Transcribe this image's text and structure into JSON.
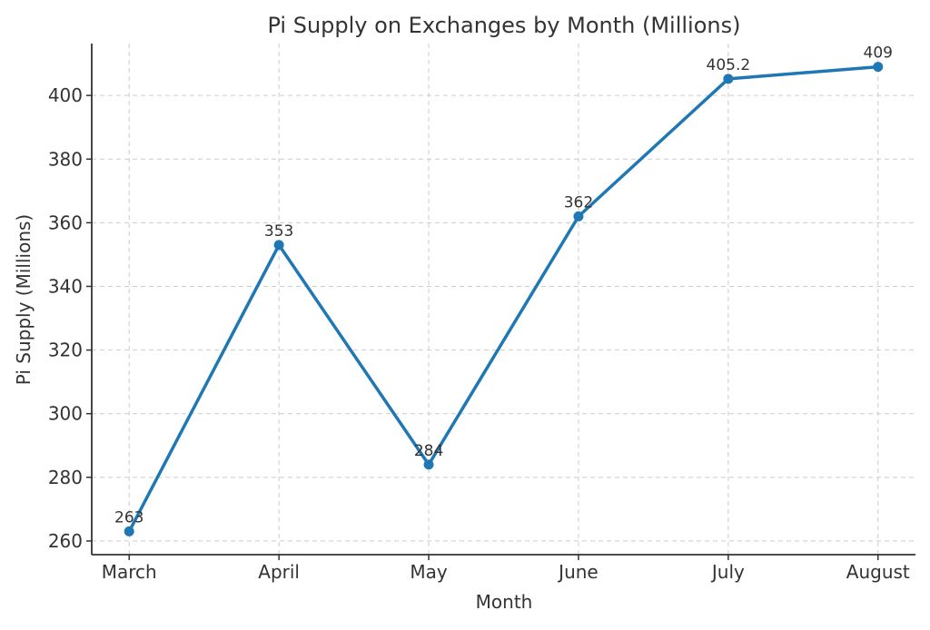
{
  "chart_data": {
    "type": "line",
    "title": "Pi Supply on Exchanges by Month (Millions)",
    "xlabel": "Month",
    "ylabel": "Pi Supply (Millions)",
    "categories": [
      "March",
      "April",
      "May",
      "June",
      "July",
      "August"
    ],
    "values": [
      263,
      353,
      284,
      362,
      405.2,
      409
    ],
    "data_labels": [
      "263",
      "353",
      "284",
      "362",
      "405.2",
      "409"
    ],
    "yticks": [
      260,
      280,
      300,
      320,
      340,
      360,
      380,
      400
    ],
    "ylim": [
      255.7,
      416.3
    ],
    "grid": true,
    "marker": "circle",
    "color": "#1f77b4"
  }
}
